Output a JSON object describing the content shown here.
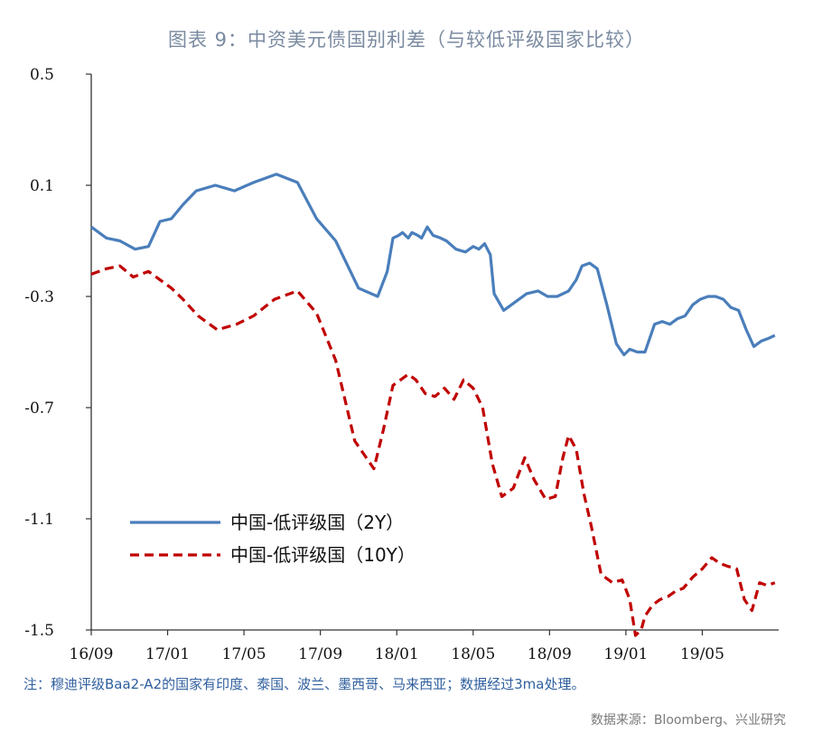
{
  "title": "图表 9：中资美元债国别利差（与较低评级国家比较）",
  "note": "注：穆迪评级Baa2-A2的国家有印度、泰国、波兰、墨西哥、马来西亚；数据经过3ma处理。",
  "source": "数据来源：Bloomberg、兴业研究",
  "chart_data": {
    "type": "line",
    "title": "图表 9：中资美元债国别利差（与较低评级国家比较）",
    "xlabel": "",
    "ylabel": "",
    "xlim": [
      0,
      36
    ],
    "ylim": [
      -1.5,
      0.5
    ],
    "x_ticks": [
      {
        "x": 0,
        "label": "16/09"
      },
      {
        "x": 4,
        "label": "17/01"
      },
      {
        "x": 8,
        "label": "17/05"
      },
      {
        "x": 12,
        "label": "17/09"
      },
      {
        "x": 16,
        "label": "18/01"
      },
      {
        "x": 20,
        "label": "18/05"
      },
      {
        "x": 24,
        "label": "18/09"
      },
      {
        "x": 28,
        "label": "19/01"
      },
      {
        "x": 32,
        "label": "19/05"
      }
    ],
    "y_ticks": [
      {
        "y": 0.5,
        "label": "0.5"
      },
      {
        "y": 0.1,
        "label": "0.1"
      },
      {
        "y": -0.3,
        "label": "-0.3"
      },
      {
        "y": -0.7,
        "label": "-0.7"
      },
      {
        "y": -1.1,
        "label": "-1.1"
      },
      {
        "y": -1.5,
        "label": "-1.5"
      }
    ],
    "grid": false,
    "legend_position": "bottom-left",
    "series": [
      {
        "name": "中国-低评级国（2Y）",
        "color": "#4a7ebb",
        "style": "solid",
        "points": [
          [
            0.0,
            -0.05
          ],
          [
            0.8,
            -0.09
          ],
          [
            1.5,
            -0.1
          ],
          [
            2.3,
            -0.13
          ],
          [
            3.0,
            -0.12
          ],
          [
            3.6,
            -0.03
          ],
          [
            4.2,
            -0.02
          ],
          [
            4.8,
            0.03
          ],
          [
            5.5,
            0.08
          ],
          [
            6.5,
            0.1
          ],
          [
            7.5,
            0.08
          ],
          [
            8.5,
            0.11
          ],
          [
            9.7,
            0.14
          ],
          [
            10.8,
            0.11
          ],
          [
            11.8,
            -0.02
          ],
          [
            12.8,
            -0.1
          ],
          [
            14.0,
            -0.27
          ],
          [
            15.0,
            -0.3
          ],
          [
            15.5,
            -0.21
          ],
          [
            15.8,
            -0.09
          ],
          [
            16.1,
            -0.08
          ],
          [
            16.3,
            -0.07
          ],
          [
            16.6,
            -0.09
          ],
          [
            16.8,
            -0.07
          ],
          [
            17.1,
            -0.08
          ],
          [
            17.3,
            -0.09
          ],
          [
            17.6,
            -0.05
          ],
          [
            17.9,
            -0.08
          ],
          [
            18.3,
            -0.09
          ],
          [
            18.6,
            -0.1
          ],
          [
            19.1,
            -0.13
          ],
          [
            19.6,
            -0.14
          ],
          [
            20.0,
            -0.12
          ],
          [
            20.3,
            -0.13
          ],
          [
            20.6,
            -0.11
          ],
          [
            20.9,
            -0.15
          ],
          [
            21.1,
            -0.29
          ],
          [
            21.6,
            -0.35
          ],
          [
            22.2,
            -0.32
          ],
          [
            22.8,
            -0.29
          ],
          [
            23.4,
            -0.28
          ],
          [
            23.9,
            -0.3
          ],
          [
            24.4,
            -0.3
          ],
          [
            25.0,
            -0.28
          ],
          [
            25.4,
            -0.24
          ],
          [
            25.7,
            -0.19
          ],
          [
            26.1,
            -0.18
          ],
          [
            26.5,
            -0.2
          ],
          [
            27.0,
            -0.33
          ],
          [
            27.5,
            -0.47
          ],
          [
            27.9,
            -0.51
          ],
          [
            28.2,
            -0.49
          ],
          [
            28.6,
            -0.5
          ],
          [
            29.0,
            -0.5
          ],
          [
            29.5,
            -0.4
          ],
          [
            29.9,
            -0.39
          ],
          [
            30.3,
            -0.4
          ],
          [
            30.7,
            -0.38
          ],
          [
            31.1,
            -0.37
          ],
          [
            31.5,
            -0.33
          ],
          [
            31.9,
            -0.31
          ],
          [
            32.3,
            -0.3
          ],
          [
            32.7,
            -0.3
          ],
          [
            33.1,
            -0.31
          ],
          [
            33.5,
            -0.34
          ],
          [
            33.9,
            -0.35
          ],
          [
            34.3,
            -0.42
          ],
          [
            34.7,
            -0.48
          ],
          [
            35.1,
            -0.46
          ],
          [
            35.5,
            -0.45
          ],
          [
            35.8,
            -0.44
          ]
        ]
      },
      {
        "name": "中国-低评级国（10Y）",
        "color": "#c00000",
        "style": "dashed",
        "points": [
          [
            0.0,
            -0.22
          ],
          [
            0.8,
            -0.2
          ],
          [
            1.5,
            -0.19
          ],
          [
            2.2,
            -0.23
          ],
          [
            3.0,
            -0.21
          ],
          [
            3.6,
            -0.24
          ],
          [
            4.2,
            -0.27
          ],
          [
            4.8,
            -0.31
          ],
          [
            5.6,
            -0.37
          ],
          [
            6.6,
            -0.42
          ],
          [
            7.6,
            -0.4
          ],
          [
            8.5,
            -0.37
          ],
          [
            9.6,
            -0.31
          ],
          [
            10.8,
            -0.28
          ],
          [
            11.8,
            -0.36
          ],
          [
            12.8,
            -0.53
          ],
          [
            13.8,
            -0.82
          ],
          [
            14.8,
            -0.92
          ],
          [
            15.3,
            -0.78
          ],
          [
            15.8,
            -0.62
          ],
          [
            16.2,
            -0.6
          ],
          [
            16.6,
            -0.58
          ],
          [
            17.0,
            -0.6
          ],
          [
            17.5,
            -0.65
          ],
          [
            18.0,
            -0.66
          ],
          [
            18.5,
            -0.63
          ],
          [
            19.0,
            -0.67
          ],
          [
            19.5,
            -0.6
          ],
          [
            20.0,
            -0.63
          ],
          [
            20.5,
            -0.7
          ],
          [
            21.0,
            -0.9
          ],
          [
            21.5,
            -1.02
          ],
          [
            22.1,
            -0.99
          ],
          [
            22.7,
            -0.88
          ],
          [
            23.2,
            -0.96
          ],
          [
            23.8,
            -1.03
          ],
          [
            24.3,
            -1.02
          ],
          [
            24.7,
            -0.88
          ],
          [
            25.0,
            -0.8
          ],
          [
            25.4,
            -0.85
          ],
          [
            25.8,
            -1.01
          ],
          [
            26.2,
            -1.13
          ],
          [
            26.7,
            -1.3
          ],
          [
            27.3,
            -1.33
          ],
          [
            27.8,
            -1.32
          ],
          [
            28.2,
            -1.39
          ],
          [
            28.5,
            -1.52
          ],
          [
            28.8,
            -1.5
          ],
          [
            29.0,
            -1.45
          ],
          [
            29.4,
            -1.41
          ],
          [
            29.8,
            -1.39
          ],
          [
            30.2,
            -1.38
          ],
          [
            30.6,
            -1.36
          ],
          [
            31.0,
            -1.35
          ],
          [
            31.5,
            -1.31
          ],
          [
            32.0,
            -1.28
          ],
          [
            32.5,
            -1.24
          ],
          [
            32.9,
            -1.26
          ],
          [
            33.3,
            -1.27
          ],
          [
            33.8,
            -1.28
          ],
          [
            34.2,
            -1.39
          ],
          [
            34.6,
            -1.43
          ],
          [
            35.0,
            -1.33
          ],
          [
            35.4,
            -1.34
          ],
          [
            35.8,
            -1.33
          ]
        ]
      }
    ]
  }
}
